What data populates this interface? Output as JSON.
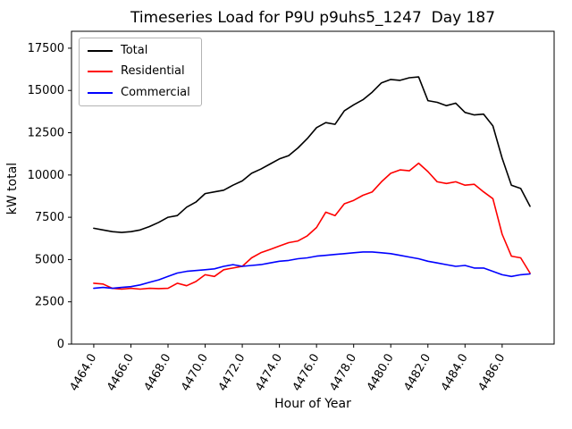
{
  "figure": {
    "title": "Timeseries Load for P9U p9uhs5_1247  Day 187",
    "xlabel": "Hour of Year",
    "ylabel": "kW total"
  },
  "chart_data": {
    "type": "line",
    "title": "Timeseries Load for P9U p9uhs5_1247  Day 187",
    "xlabel": "Hour of Year",
    "ylabel": "kW total",
    "grid": false,
    "legend_position": "upper left",
    "xlim": [
      4462.8,
      4488.8
    ],
    "ylim": [
      0,
      18500
    ],
    "xticks": [
      4464,
      4466,
      4468,
      4470,
      4472,
      4474,
      4476,
      4478,
      4480,
      4482,
      4484,
      4486
    ],
    "xtick_labels": [
      "4464.0",
      "4466.0",
      "4468.0",
      "4470.0",
      "4472.0",
      "4474.0",
      "4476.0",
      "4478.0",
      "4480.0",
      "4482.0",
      "4484.0",
      "4486.0"
    ],
    "yticks": [
      0,
      2500,
      5000,
      7500,
      10000,
      12500,
      15000,
      17500
    ],
    "ytick_labels": [
      "0",
      "2500",
      "5000",
      "7500",
      "10000",
      "12500",
      "15000",
      "17500"
    ],
    "x": [
      4464.0,
      4464.5,
      4465.0,
      4465.5,
      4466.0,
      4466.5,
      4467.0,
      4467.5,
      4468.0,
      4468.5,
      4469.0,
      4469.5,
      4470.0,
      4470.5,
      4471.0,
      4471.5,
      4472.0,
      4472.5,
      4473.0,
      4473.5,
      4474.0,
      4474.5,
      4475.0,
      4475.5,
      4476.0,
      4476.5,
      4477.0,
      4477.5,
      4478.0,
      4478.5,
      4479.0,
      4479.5,
      4480.0,
      4480.5,
      4481.0,
      4481.5,
      4482.0,
      4482.5,
      4483.0,
      4483.5,
      4484.0,
      4484.5,
      4485.0,
      4485.5,
      4486.0,
      4486.5,
      4487.0,
      4487.5
    ],
    "series": [
      {
        "name": "Total",
        "color": "#000000",
        "values": [
          6850,
          6750,
          6650,
          6600,
          6650,
          6750,
          6950,
          7200,
          7500,
          7600,
          8100,
          8400,
          8900,
          9000,
          9100,
          9400,
          9650,
          10100,
          10350,
          10650,
          10950,
          11150,
          11600,
          12150,
          12800,
          13100,
          13000,
          13800,
          14150,
          14450,
          14900,
          15450,
          15650,
          15600,
          15750,
          15800,
          14400,
          14300,
          14100,
          14250,
          13700,
          13550,
          13600,
          12900,
          11000,
          9400,
          9200,
          8150
        ]
      },
      {
        "name": "Residential",
        "color": "#ff0000",
        "values": [
          3600,
          3550,
          3300,
          3250,
          3300,
          3250,
          3300,
          3280,
          3300,
          3600,
          3450,
          3700,
          4100,
          4000,
          4400,
          4500,
          4600,
          5100,
          5400,
          5600,
          5800,
          6000,
          6100,
          6400,
          6900,
          7800,
          7600,
          8300,
          8500,
          8800,
          9000,
          9600,
          10100,
          10300,
          10250,
          10700,
          10200,
          9600,
          9500,
          9600,
          9400,
          9450,
          9000,
          8600,
          6500,
          5200,
          5100,
          4200
        ]
      },
      {
        "name": "Commercial",
        "color": "#0000ff",
        "values": [
          3300,
          3350,
          3300,
          3350,
          3400,
          3500,
          3650,
          3800,
          4000,
          4200,
          4300,
          4350,
          4400,
          4450,
          4600,
          4700,
          4600,
          4650,
          4700,
          4800,
          4900,
          4950,
          5050,
          5100,
          5200,
          5250,
          5300,
          5350,
          5400,
          5450,
          5450,
          5400,
          5350,
          5250,
          5150,
          5050,
          4900,
          4800,
          4700,
          4600,
          4650,
          4500,
          4500,
          4300,
          4100,
          4000,
          4100,
          4150
        ]
      }
    ]
  }
}
